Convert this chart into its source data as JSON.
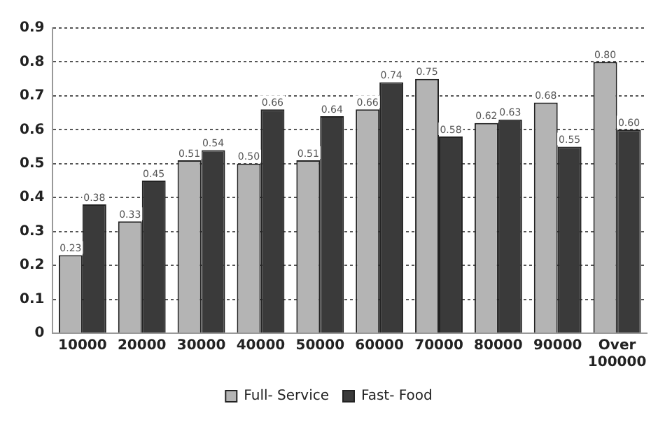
{
  "chart_data": {
    "type": "bar",
    "categories": [
      "10000",
      "20000",
      "30000",
      "40000",
      "50000",
      "60000",
      "70000",
      "80000",
      "90000",
      "Over 100000"
    ],
    "series": [
      {
        "name": "Full- Service",
        "color": "#b4b4b4",
        "values": [
          0.23,
          0.33,
          0.51,
          0.5,
          0.51,
          0.66,
          0.75,
          0.62,
          0.68,
          0.8
        ],
        "value_labels": [
          "0.23",
          "0.33",
          "0.51",
          "0.50",
          "0.51",
          "0.66",
          "0.75",
          "0.62",
          "0.68",
          "0.80"
        ]
      },
      {
        "name": "Fast- Food",
        "color": "#3a3a3a",
        "values": [
          0.38,
          0.45,
          0.54,
          0.66,
          0.64,
          0.74,
          0.58,
          0.63,
          0.55,
          0.6
        ],
        "value_labels": [
          "0.38",
          "0.45",
          "0.54",
          "0.66",
          "0.64",
          "0.74",
          "0.58",
          "0.63",
          "0.55",
          "0.60"
        ]
      }
    ],
    "ylim": [
      0,
      0.9
    ],
    "yticks": [
      0,
      0.1,
      0.2,
      0.3,
      0.4,
      0.5,
      0.6,
      0.7,
      0.8,
      0.9
    ],
    "grid": "y",
    "legend": "bottom"
  }
}
